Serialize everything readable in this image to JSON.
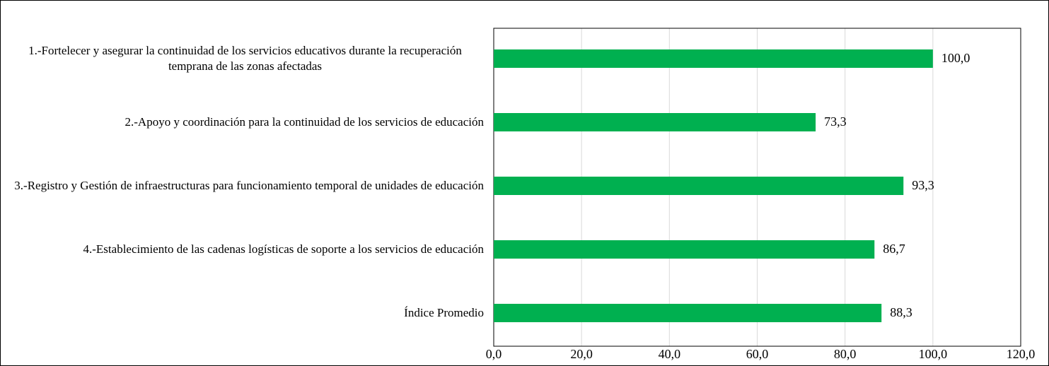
{
  "chart_data": {
    "type": "bar",
    "orientation": "horizontal",
    "categories": [
      "1.-Fortelecer y asegurar la continuidad de los servicios educativos durante la recuperación temprana de las zonas afectadas",
      "2.-Apoyo y coordinación para la continuidad de los servicios de educación",
      "3.-Registro y Gestión de infraestructuras para funcionamiento temporal de unidades de educación",
      "4.-Establecimiento de las cadenas logísticas de soporte a los servicios de educación",
      "Índice Promedio"
    ],
    "values": [
      100.0,
      73.3,
      93.3,
      86.7,
      88.3
    ],
    "value_labels": [
      "100,0",
      "73,3",
      "93,3",
      "86,7",
      "88,3"
    ],
    "color": "#00b050",
    "xlim": [
      0,
      120
    ],
    "xticks": [
      {
        "value": 0,
        "label": "0,0"
      },
      {
        "value": 20,
        "label": "20,0"
      },
      {
        "value": 40,
        "label": "40,0"
      },
      {
        "value": 60,
        "label": "60,0"
      },
      {
        "value": 80,
        "label": "80,0"
      },
      {
        "value": 100,
        "label": "100,0"
      },
      {
        "value": 120,
        "label": "120,0"
      }
    ],
    "grid": true
  }
}
